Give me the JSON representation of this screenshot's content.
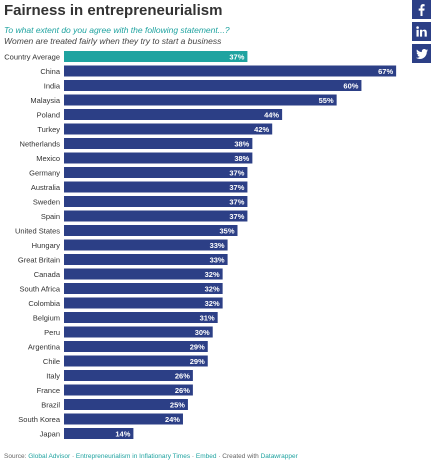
{
  "title": "Fairness in entrepreneurialism",
  "subtitle": "To what extent do you agree with the following statement...?",
  "statement": "Women are treated fairly when they try to start a business",
  "share": {
    "facebook_icon": "facebook-icon",
    "linkedin_icon": "linkedin-icon",
    "twitter_icon": "twitter-icon"
  },
  "footer": {
    "source_label": "Source:",
    "source_link": "Global Advisor",
    "sep1": " · ",
    "report_link": "Entrepreneurialism in Inflationary Times",
    "sep2": " · ",
    "embed_link": "Embed",
    "sep3": " · ",
    "created_label": "Created with",
    "tool_link": "Datawrapper"
  },
  "colors": {
    "highlight": "#1fa3a0",
    "bar": "#2c3f86",
    "title": "#333333",
    "subtitle": "#1fa3a0"
  },
  "chart_data": {
    "type": "bar",
    "orientation": "horizontal",
    "value_suffix": "%",
    "xlim": [
      0,
      70
    ],
    "grid": false,
    "highlight_category": "Country Average",
    "categories": [
      "Country Average",
      "China",
      "India",
      "Malaysia",
      "Poland",
      "Turkey",
      "Netherlands",
      "Mexico",
      "Germany",
      "Australia",
      "Sweden",
      "Spain",
      "United States",
      "Hungary",
      "Great Britain",
      "Canada",
      "South Africa",
      "Colombia",
      "Belgium",
      "Peru",
      "Argentina",
      "Chile",
      "Italy",
      "France",
      "Brazil",
      "South Korea",
      "Japan"
    ],
    "values": [
      37,
      67,
      60,
      55,
      44,
      42,
      38,
      38,
      37,
      37,
      37,
      37,
      35,
      33,
      33,
      32,
      32,
      32,
      31,
      30,
      29,
      29,
      26,
      26,
      25,
      24,
      14
    ]
  }
}
